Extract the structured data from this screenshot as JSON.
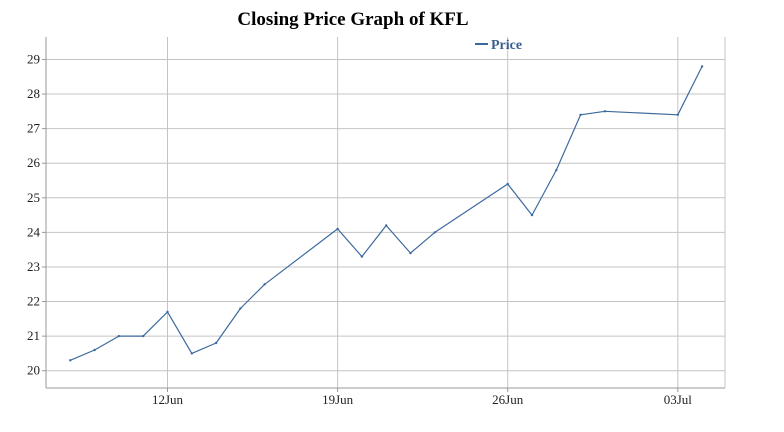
{
  "chart_data": {
    "type": "line",
    "title": "Closing Price Graph of KFL",
    "xlabel": "",
    "ylabel": "",
    "x_ticks": [
      "12Jun",
      "19Jun",
      "26Jun",
      "03Jul"
    ],
    "y_ticks": [
      "20",
      "21",
      "22",
      "23",
      "24",
      "25",
      "26",
      "27",
      "28",
      "29"
    ],
    "ylim": [
      19.5,
      29.65
    ],
    "grid": true,
    "legend_position": "top-right",
    "series": [
      {
        "name": "Price",
        "color": "#3d6a9e",
        "points": [
          {
            "x": "2016-06-08",
            "y": 20.3
          },
          {
            "x": "2016-06-09",
            "y": 20.6
          },
          {
            "x": "2016-06-10",
            "y": 21.0
          },
          {
            "x": "2016-06-11",
            "y": 21.0
          },
          {
            "x": "2016-06-12",
            "y": 21.7
          },
          {
            "x": "2016-06-13",
            "y": 20.5
          },
          {
            "x": "2016-06-14",
            "y": 20.8
          },
          {
            "x": "2016-06-15",
            "y": 21.8
          },
          {
            "x": "2016-06-16",
            "y": 22.5
          },
          {
            "x": "2016-06-19",
            "y": 24.1
          },
          {
            "x": "2016-06-20",
            "y": 23.3
          },
          {
            "x": "2016-06-21",
            "y": 24.2
          },
          {
            "x": "2016-06-22",
            "y": 23.4
          },
          {
            "x": "2016-06-23",
            "y": 24.0
          },
          {
            "x": "2016-06-26",
            "y": 25.4
          },
          {
            "x": "2016-06-27",
            "y": 24.5
          },
          {
            "x": "2016-06-28",
            "y": 25.8
          },
          {
            "x": "2016-06-29",
            "y": 27.4
          },
          {
            "x": "2016-06-30",
            "y": 27.5
          },
          {
            "x": "2016-07-03",
            "y": 27.4
          },
          {
            "x": "2016-07-04",
            "y": 28.8
          }
        ]
      }
    ]
  }
}
